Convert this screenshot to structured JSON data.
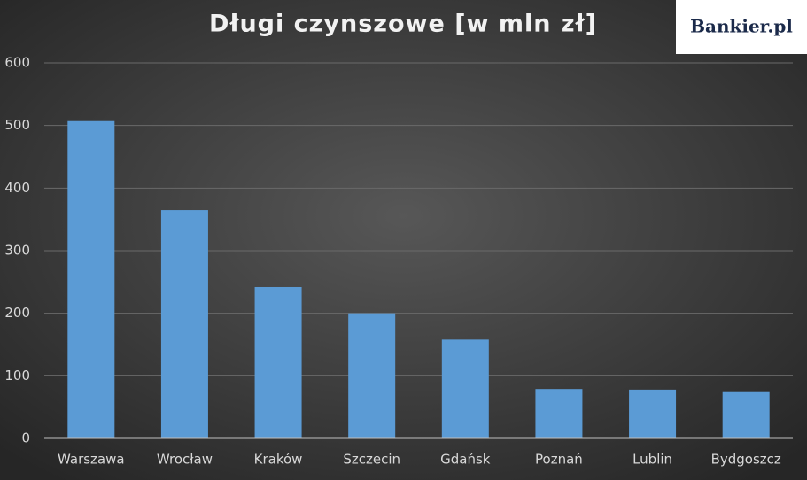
{
  "logo": "Bankier.pl",
  "chart_data": {
    "type": "bar",
    "title": "Długi czynszowe [w mln zł]",
    "categories": [
      "Warszawa",
      "Wrocław",
      "Kraków",
      "Szczecin",
      "Gdańsk",
      "Poznań",
      "Lublin",
      "Bydgoszcz"
    ],
    "values": [
      507,
      365,
      242,
      200,
      158,
      79,
      78,
      74
    ],
    "color": "#5b9bd5",
    "ylim": [
      0,
      600
    ],
    "yticks": [
      0,
      100,
      200,
      300,
      400,
      500,
      600
    ],
    "grid": true
  }
}
